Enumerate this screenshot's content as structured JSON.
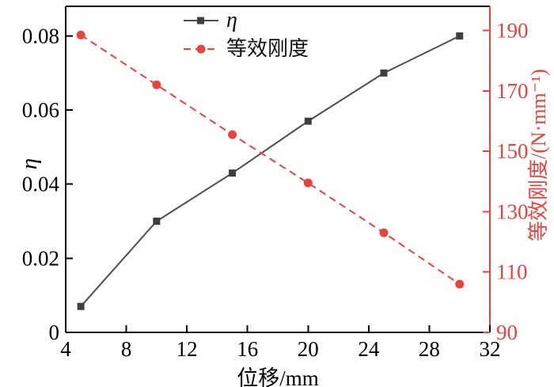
{
  "chart_data": {
    "type": "line",
    "title": "",
    "xlabel": "位移/mm",
    "x": [
      5,
      10,
      15,
      20,
      25,
      30
    ],
    "x_axis": {
      "min": 4,
      "max": 32,
      "ticks": [
        4,
        8,
        12,
        16,
        20,
        24,
        28,
        32
      ]
    },
    "left_axis": {
      "label": "η",
      "min": 0,
      "max": 0.088,
      "ticks": [
        0,
        0.02,
        0.04,
        0.06,
        0.08
      ],
      "tick_labels": [
        "0",
        "0.02",
        "0.04",
        "0.06",
        "0.08"
      ],
      "color": "#000000"
    },
    "right_axis": {
      "label": "等效刚度/(N·mm⁻¹)",
      "min": 90,
      "max": 198,
      "ticks": [
        90,
        110,
        130,
        150,
        170,
        190
      ],
      "tick_labels": [
        "90",
        "110",
        "130",
        "150",
        "170",
        "190"
      ],
      "color": "#e8433c"
    },
    "series": [
      {
        "id": "eta",
        "name": "η",
        "axis": "left",
        "values": [
          0.007,
          0.03,
          0.043,
          0.057,
          0.07,
          0.08
        ],
        "color": "#4d4d4d",
        "marker": "square",
        "marker_color": "#3f3f3f",
        "line_style": "solid"
      },
      {
        "id": "stiffness",
        "name": "等效刚度",
        "axis": "right",
        "values": [
          188.5,
          172,
          155.5,
          139.5,
          123,
          106
        ],
        "color": "#e8433c",
        "marker": "circle",
        "marker_color": "#e8433c",
        "line_style": "dashed"
      }
    ],
    "legend": {
      "position": "top-center",
      "entries": [
        "η",
        "等效刚度"
      ]
    },
    "grid": false
  }
}
